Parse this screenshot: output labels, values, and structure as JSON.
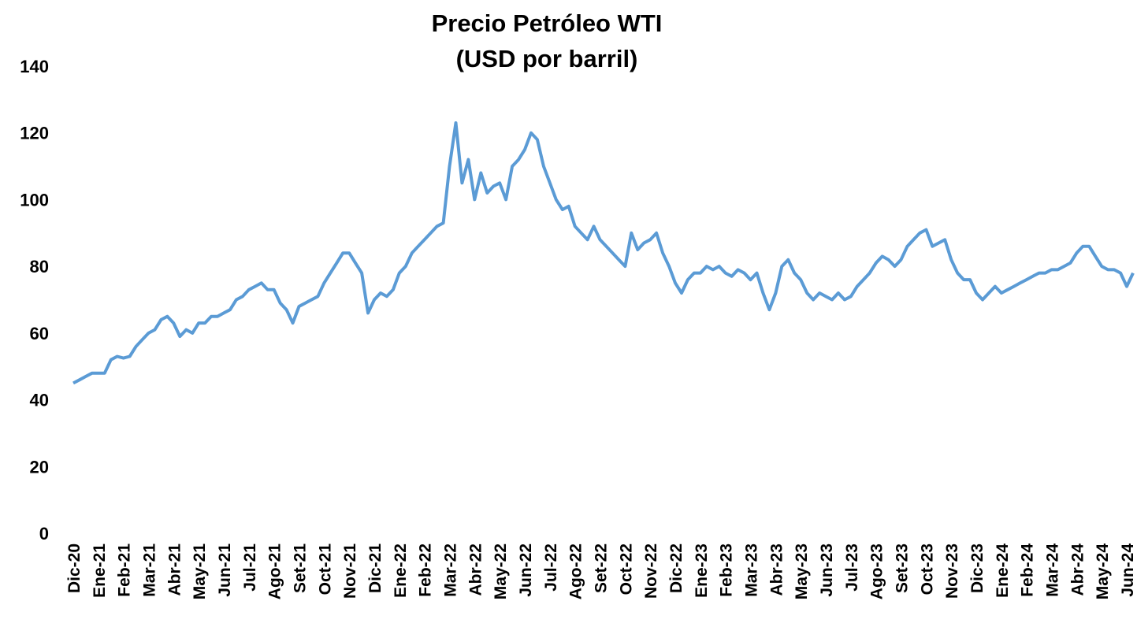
{
  "chart_data": {
    "type": "line",
    "title": "Precio Petróleo WTI",
    "subtitle": "(USD por barril)",
    "categories": [
      "Dic-20",
      null,
      null,
      null,
      "Ene-21",
      null,
      null,
      null,
      "Feb-21",
      null,
      null,
      null,
      "Mar-21",
      null,
      null,
      null,
      "Abr-21",
      null,
      null,
      null,
      "May-21",
      null,
      null,
      null,
      "Jun-21",
      null,
      null,
      null,
      "Jul-21",
      null,
      null,
      null,
      "Ago-21",
      null,
      null,
      null,
      "Set-21",
      null,
      null,
      null,
      "Oct-21",
      null,
      null,
      null,
      "Nov-21",
      null,
      null,
      null,
      "Dic-21",
      null,
      null,
      null,
      "Ene-22",
      null,
      null,
      null,
      "Feb-22",
      null,
      null,
      null,
      "Mar-22",
      null,
      null,
      null,
      "Abr-22",
      null,
      null,
      null,
      "May-22",
      null,
      null,
      null,
      "Jun-22",
      null,
      null,
      null,
      "Jul-22",
      null,
      null,
      null,
      "Ago-22",
      null,
      null,
      null,
      "Set-22",
      null,
      null,
      null,
      "Oct-22",
      null,
      null,
      null,
      "Nov-22",
      null,
      null,
      null,
      "Dic-22",
      null,
      null,
      null,
      "Ene-23",
      null,
      null,
      null,
      "Feb-23",
      null,
      null,
      null,
      "Mar-23",
      null,
      null,
      null,
      "Abr-23",
      null,
      null,
      null,
      "May-23",
      null,
      null,
      null,
      "Jun-23",
      null,
      null,
      null,
      "Jul-23",
      null,
      null,
      null,
      "Ago-23",
      null,
      null,
      null,
      "Set-23",
      null,
      null,
      null,
      "Oct-23",
      null,
      null,
      null,
      "Nov-23",
      null,
      null,
      null,
      "Dic-23",
      null,
      null,
      null,
      "Ene-24",
      null,
      null,
      null,
      "Feb-24",
      null,
      null,
      null,
      "Mar-24",
      null,
      null,
      null,
      "Abr-24",
      null,
      null,
      null,
      "May-24",
      null,
      null,
      null,
      "Jun-24",
      null
    ],
    "series": [
      {
        "name": "WTI",
        "color": "#5b9bd5",
        "values": [
          45,
          46,
          47,
          48,
          48,
          48,
          52,
          53,
          52.5,
          53,
          56,
          58,
          60,
          61,
          64,
          65,
          63,
          59,
          61,
          60,
          63,
          63,
          65,
          65,
          66,
          67,
          70,
          71,
          73,
          74,
          75,
          73,
          73,
          69,
          67,
          63,
          68,
          69,
          70,
          71,
          75,
          78,
          81,
          84,
          84,
          81,
          78,
          66,
          70,
          72,
          71,
          73,
          78,
          80,
          84,
          86,
          88,
          90,
          92,
          93,
          110,
          123,
          105,
          112,
          100,
          108,
          102,
          104,
          105,
          100,
          110,
          112,
          115,
          120,
          118,
          110,
          105,
          100,
          97,
          98,
          92,
          90,
          88,
          92,
          88,
          86,
          84,
          82,
          80,
          90,
          85,
          87,
          88,
          90,
          84,
          80,
          75,
          72,
          76,
          78,
          78,
          80,
          79,
          80,
          78,
          77,
          79,
          78,
          76,
          78,
          72,
          67,
          72,
          80,
          82,
          78,
          76,
          72,
          70,
          72,
          71,
          70,
          72,
          70,
          71,
          74,
          76,
          78,
          81,
          83,
          82,
          80,
          82,
          86,
          88,
          90,
          91,
          86,
          87,
          88,
          82,
          78,
          76,
          76,
          72,
          70,
          72,
          74,
          72,
          73,
          74,
          75,
          76,
          77,
          78,
          78,
          79,
          79,
          80,
          81,
          84,
          86,
          86,
          83,
          80,
          79,
          79,
          78,
          74,
          78
        ]
      }
    ],
    "ylim": [
      0,
      140
    ],
    "yticks": [
      0,
      20,
      40,
      60,
      80,
      100,
      120,
      140
    ],
    "grid": false
  }
}
